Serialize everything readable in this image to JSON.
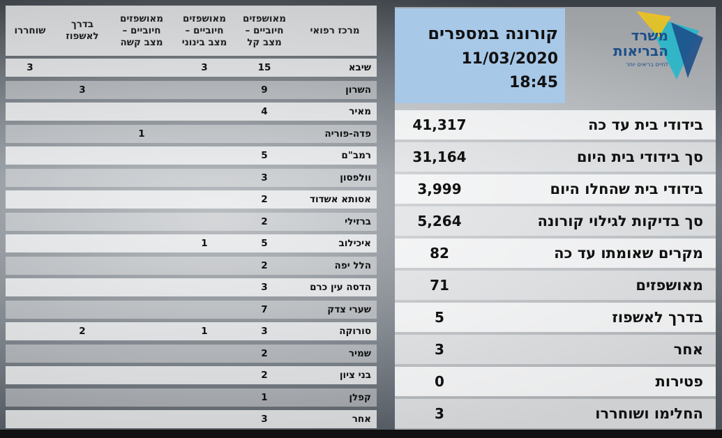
{
  "table": {
    "headers": {
      "center": "מרכז רפואי",
      "mild": "מאושפזים\nחיוביים –\nמצב קל",
      "moderate": "מאושפזים\nחיוביים –\nמצב בינוני",
      "severe": "מאושפזים\nחיוביים –\nמצב קשה",
      "en_route": "בדרך\nלאשפוז",
      "released": "שוחררו"
    },
    "rows": [
      {
        "name": "שיבא",
        "mild": "15",
        "moderate": "3",
        "severe": "",
        "en_route": "",
        "released": "3"
      },
      {
        "name": "השרון",
        "mild": "9",
        "moderate": "",
        "severe": "",
        "en_route": "3",
        "released": ""
      },
      {
        "name": "מאיר",
        "mild": "4",
        "moderate": "",
        "severe": "",
        "en_route": "",
        "released": ""
      },
      {
        "name": "פדה-פוריה",
        "mild": "",
        "moderate": "",
        "severe": "1",
        "en_route": "",
        "released": ""
      },
      {
        "name": "רמב\"ם",
        "mild": "5",
        "moderate": "",
        "severe": "",
        "en_route": "",
        "released": ""
      },
      {
        "name": "וולפסון",
        "mild": "3",
        "moderate": "",
        "severe": "",
        "en_route": "",
        "released": ""
      },
      {
        "name": "אסותא אשדוד",
        "mild": "2",
        "moderate": "",
        "severe": "",
        "en_route": "",
        "released": ""
      },
      {
        "name": "ברזילי",
        "mild": "2",
        "moderate": "",
        "severe": "",
        "en_route": "",
        "released": ""
      },
      {
        "name": "איכילוב",
        "mild": "5",
        "moderate": "1",
        "severe": "",
        "en_route": "",
        "released": ""
      },
      {
        "name": "הלל יפה",
        "mild": "2",
        "moderate": "",
        "severe": "",
        "en_route": "",
        "released": ""
      },
      {
        "name": "הדסה עין כרם",
        "mild": "3",
        "moderate": "",
        "severe": "",
        "en_route": "",
        "released": ""
      },
      {
        "name": "שערי צדק",
        "mild": "7",
        "moderate": "",
        "severe": "",
        "en_route": "",
        "released": ""
      },
      {
        "name": "סורוקה",
        "mild": "3",
        "moderate": "1",
        "severe": "",
        "en_route": "2",
        "released": ""
      },
      {
        "name": "שמיר",
        "mild": "2",
        "moderate": "",
        "severe": "",
        "en_route": "",
        "released": ""
      },
      {
        "name": "בני ציון",
        "mild": "2",
        "moderate": "",
        "severe": "",
        "en_route": "",
        "released": ""
      },
      {
        "name": "קפלן",
        "mild": "1",
        "moderate": "",
        "severe": "",
        "en_route": "",
        "released": ""
      },
      {
        "name": "אחר",
        "mild": "3",
        "moderate": "",
        "severe": "",
        "en_route": "",
        "released": ""
      }
    ]
  },
  "title": {
    "line1": "קורונה במספרים",
    "date": "11/03/2020",
    "time": "18:45"
  },
  "logo": {
    "name_line1": "משרד",
    "name_line2": "הבריאות",
    "tagline": "לחיים בריאים יותר",
    "colors": {
      "teal": "#2bb6c8",
      "blue": "#1d4f8a",
      "yellow": "#f2c21a"
    }
  },
  "stats": [
    {
      "label": "בידודי בית עד כה",
      "value": "41,317"
    },
    {
      "label": "סך בידודי בית היום",
      "value": "31,164"
    },
    {
      "label": "בידודי בית שהחלו היום",
      "value": "3,999"
    },
    {
      "label": "סך בדיקות לגילוי קורונה",
      "value": "5,264"
    },
    {
      "label": "מקרים שאומתו עד כה",
      "value": "82"
    },
    {
      "label": "מאושפזים",
      "value": "71"
    },
    {
      "label": "בדרך לאשפוז",
      "value": "5"
    },
    {
      "label": "אחר",
      "value": "3"
    },
    {
      "label": "פטירות",
      "value": "0"
    },
    {
      "label": "החלימו ושוחררו",
      "value": "3"
    }
  ]
}
